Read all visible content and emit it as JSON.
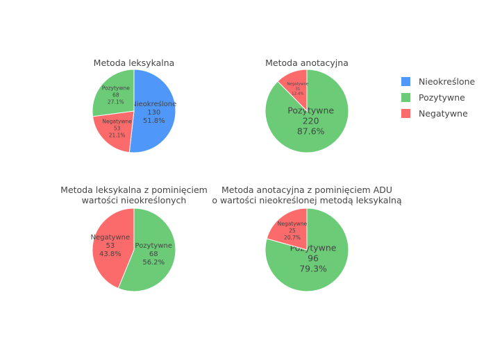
{
  "colors": {
    "Nieokreślone": "#4f98f9",
    "Pozytywne": "#6bcb77",
    "Negatywne": "#fb6b6b"
  },
  "legend": [
    {
      "label": "Nieokreślone"
    },
    {
      "label": "Pozytywne"
    },
    {
      "label": "Negatywne"
    }
  ],
  "chart_data": [
    {
      "type": "pie",
      "title": [
        "Metoda leksykalna"
      ],
      "slices": [
        {
          "label": "Nieokreślone",
          "value": 130,
          "percent": "51.8%"
        },
        {
          "label": "Negatywne",
          "value": 53,
          "percent": "21.1%"
        },
        {
          "label": "Pozytywne",
          "value": 68,
          "percent": "27.1%"
        }
      ]
    },
    {
      "type": "pie",
      "title": [
        "Metoda anotacyjna"
      ],
      "slices": [
        {
          "label": "Pozytywne",
          "value": 220,
          "percent": "87.6%"
        },
        {
          "label": "Negatywne",
          "value": 31,
          "percent": "12.4%"
        }
      ]
    },
    {
      "type": "pie",
      "title": [
        "Metoda leksykalna z pominięciem",
        "wartości nieokreślonych"
      ],
      "slices": [
        {
          "label": "Pozytywne",
          "value": 68,
          "percent": "56.2%"
        },
        {
          "label": "Negatywne",
          "value": 53,
          "percent": "43.8%"
        }
      ]
    },
    {
      "type": "pie",
      "title": [
        "Metoda anotacyjna z pominięciem ADU",
        "o wartości nieokreślonej metodą leksykalną"
      ],
      "slices": [
        {
          "label": "Pozytywne",
          "value": 96,
          "percent": "79.3%"
        },
        {
          "label": "Negatywne",
          "value": 25,
          "percent": "20.7%"
        }
      ]
    }
  ]
}
